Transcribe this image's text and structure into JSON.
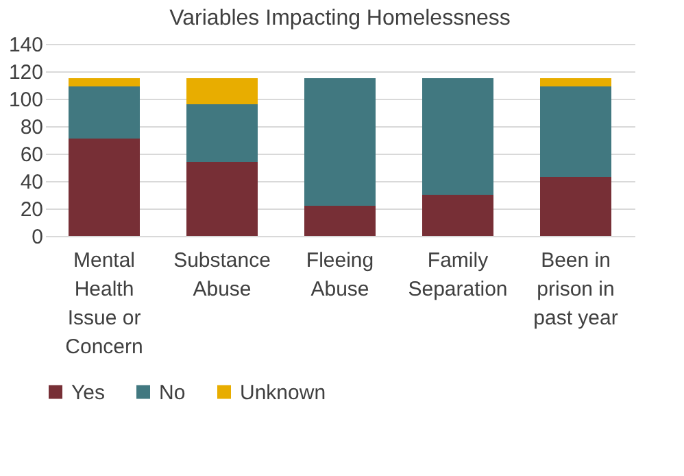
{
  "chart_data": {
    "type": "bar",
    "title": "Variables Impacting Homelessness",
    "stacked": true,
    "categories": [
      "Mental Health Issue or Concern",
      "Substance Abuse",
      "Fleeing Abuse",
      "Family Separation",
      "Been in prison in past year"
    ],
    "series": [
      {
        "name": "Yes",
        "color": "#772f36",
        "values": [
          71,
          54,
          22,
          30,
          43
        ]
      },
      {
        "name": "No",
        "color": "#417880",
        "values": [
          38,
          42,
          93,
          85,
          66
        ]
      },
      {
        "name": "Unknown",
        "color": "#e8ad00",
        "values": [
          6,
          19,
          null,
          null,
          6
        ]
      }
    ],
    "ylim": [
      0,
      140
    ],
    "yticks": [
      0,
      20,
      40,
      60,
      80,
      100,
      120,
      140
    ],
    "grid": "y",
    "legend": "bottom"
  }
}
